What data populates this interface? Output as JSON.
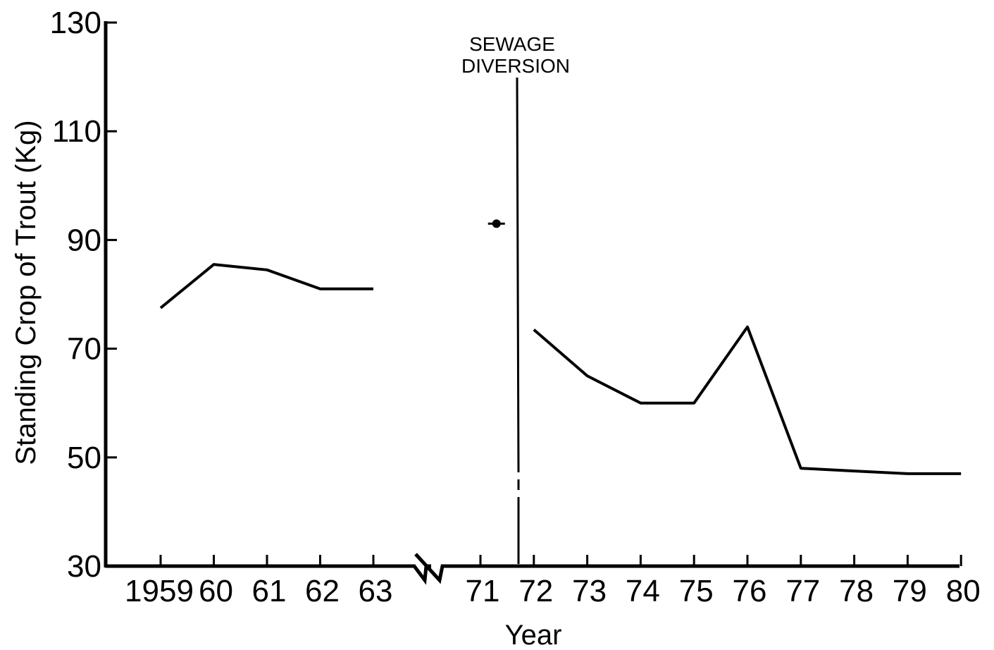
{
  "chart_data": {
    "type": "line",
    "title": "",
    "xlabel": "Year",
    "ylabel": "Standing Crop of Trout (Kg)",
    "ylim": [
      30,
      130
    ],
    "y_ticks": [
      30,
      50,
      70,
      90,
      110,
      130
    ],
    "x_tick_labels": [
      "1959",
      "60",
      "61",
      "62",
      "63",
      "71",
      "72",
      "73",
      "74",
      "75",
      "76",
      "77",
      "78",
      "79",
      "80"
    ],
    "axis_break_between": [
      "63",
      "71"
    ],
    "grid": false,
    "series": [
      {
        "segment": "before-diversion",
        "x": [
          1959,
          1960,
          1961,
          1962,
          1963
        ],
        "y": [
          77.5,
          85.5,
          84.5,
          81,
          81
        ]
      },
      {
        "segment": "after-diversion",
        "x": [
          1972,
          1973,
          1974,
          1975,
          1976,
          1977,
          1978,
          1979,
          1980
        ],
        "y": [
          73.5,
          65,
          60,
          60,
          74,
          48,
          47.5,
          47,
          47
        ]
      }
    ],
    "points": [
      {
        "x": 1971.3,
        "y": 93
      }
    ],
    "annotations": [
      {
        "text_lines": [
          "SEWAGE",
          "DIVERSION"
        ],
        "x": 1971.7
      }
    ]
  }
}
